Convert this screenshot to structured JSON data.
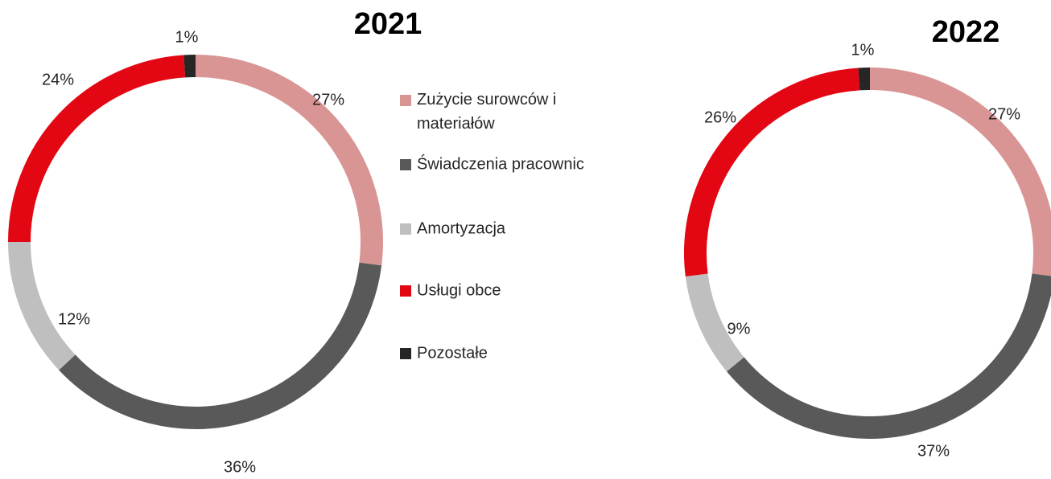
{
  "chart_data": [
    {
      "type": "donut",
      "title": "2021",
      "categories": [
        "Zużycie surowców i materiałów",
        "Świadczenia pracownic",
        "Amortyzacja",
        "Usługi obce",
        "Pozostałe"
      ],
      "values": [
        27,
        36,
        12,
        24,
        1
      ],
      "value_labels": [
        "27%",
        "36%",
        "12%",
        "24%",
        "1%"
      ],
      "colors": [
        "#d99594",
        "#595959",
        "#bfbfbf",
        "#e30613",
        "#262626"
      ]
    },
    {
      "type": "donut",
      "title": "2022",
      "values": [
        27,
        37,
        9,
        26,
        1
      ],
      "value_labels": [
        "27%",
        "37%",
        "9%",
        "26%",
        "1%"
      ],
      "colors": [
        "#d99594",
        "#595959",
        "#bfbfbf",
        "#e30613",
        "#262626"
      ]
    }
  ]
}
